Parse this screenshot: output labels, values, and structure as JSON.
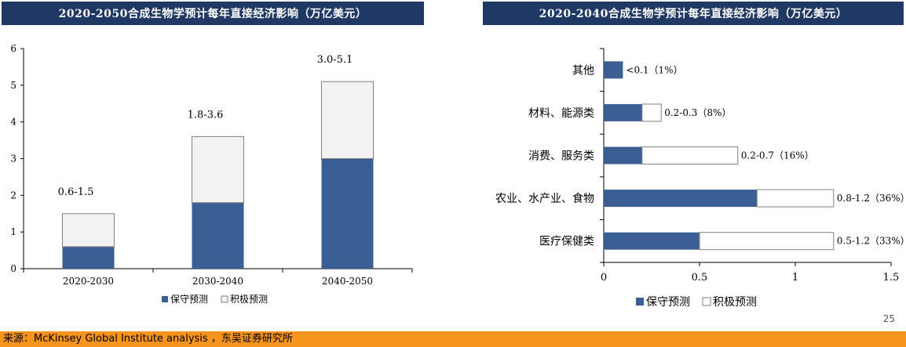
{
  "page_number": "25",
  "source": "来源：McKinsey Global Institute analysis ，东吴证券研究所",
  "colors": {
    "conservative": "#3a5f94",
    "aggressive": "#f2f2f2",
    "title_bg": "#1f3864",
    "source_bg": "#f7941d"
  },
  "chart_data": [
    {
      "type": "bar",
      "stacked": true,
      "title": "2020-2050合成生物学预计每年直接经济影响（万亿美元）",
      "categories": [
        "2020-2030",
        "2030-2040",
        "2040-2050"
      ],
      "series": [
        {
          "name": "保守预测",
          "values": [
            0.6,
            1.8,
            3.0
          ]
        },
        {
          "name": "积极预测",
          "values": [
            0.9,
            1.8,
            2.1
          ]
        }
      ],
      "data_labels": [
        "0.6-1.5",
        "1.8-3.6",
        "3.0-5.1"
      ],
      "ylim": [
        0,
        6
      ],
      "yticks": [
        "0",
        "1",
        "2",
        "3",
        "4",
        "5",
        "6"
      ],
      "legend_position": "bottom"
    },
    {
      "type": "bar",
      "orientation": "horizontal",
      "stacked": true,
      "title": "2020-2040合成生物学预计每年直接经济影响（万亿美元）",
      "categories": [
        "其他",
        "材料、能源类",
        "消费、服务类",
        "农业、水产业、食物",
        "医疗保健类"
      ],
      "series": [
        {
          "name": "保守预测",
          "values": [
            0.1,
            0.2,
            0.2,
            0.8,
            0.5
          ]
        },
        {
          "name": "积极预测",
          "values": [
            0,
            0.1,
            0.5,
            0.4,
            0.7
          ]
        }
      ],
      "data_labels": [
        "<0.1（1%）",
        "0.2-0.3（8%）",
        "0.2-0.7（16%）",
        "0.8-1.2（36%）",
        "0.5-1.2（33%）"
      ],
      "xlim": [
        0,
        1.5
      ],
      "xticks": [
        "0",
        "0.5",
        "1",
        "1.5"
      ],
      "legend_position": "bottom"
    }
  ]
}
